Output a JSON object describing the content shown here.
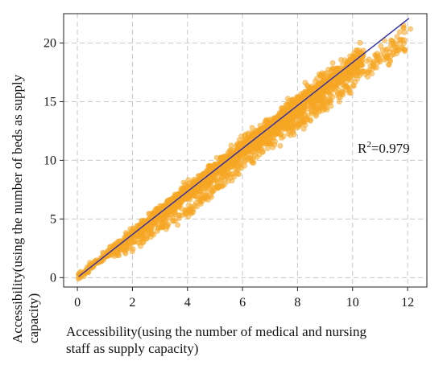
{
  "chart_data": {
    "type": "scatter",
    "xlabel_lines": [
      "Accessibility(using the number of medical and nursing",
      "staff as supply capacity)"
    ],
    "ylabel_lines": [
      "Accessibility(using the number of beds as supply",
      "capacity)"
    ],
    "annotation": {
      "prefix": "R",
      "sup": "2",
      "suffix": "=0.979"
    },
    "xlim": [
      -0.5,
      12.7
    ],
    "ylim": [
      -0.8,
      22.5
    ],
    "x_ticks": [
      0,
      2,
      4,
      6,
      8,
      10,
      12
    ],
    "y_ticks": [
      0,
      5,
      10,
      15,
      20
    ],
    "grid": true,
    "grid_style": "dashed",
    "point_color": "#f5a623",
    "line_color": "#2a2aa8",
    "fit_line": {
      "x": [
        0.05,
        12.05
      ],
      "y": [
        0.1,
        22.1
      ]
    },
    "main_band": {
      "slope": 1.82,
      "intercept": 0.0,
      "x_range": [
        0.0,
        10.4
      ]
    },
    "lower_branch": {
      "x": [
        1.5,
        4.0,
        6.0,
        8.0,
        10.0,
        12.0
      ],
      "y": [
        2.0,
        5.3,
        9.4,
        12.8,
        16.3,
        19.8
      ]
    },
    "outliers": [
      {
        "x": 10.6,
        "y": 18.6
      },
      {
        "x": 10.9,
        "y": 19.1
      },
      {
        "x": 11.2,
        "y": 19.4
      },
      {
        "x": 11.5,
        "y": 19.8
      },
      {
        "x": 11.8,
        "y": 20.3
      },
      {
        "x": 12.1,
        "y": 21.2
      },
      {
        "x": 11.0,
        "y": 18.4
      },
      {
        "x": 11.4,
        "y": 18.9
      },
      {
        "x": 11.9,
        "y": 19.3
      },
      {
        "x": 11.6,
        "y": 19.1
      },
      {
        "x": 10.4,
        "y": 17.6
      },
      {
        "x": 10.2,
        "y": 18.0
      }
    ],
    "n_points": 2600
  }
}
